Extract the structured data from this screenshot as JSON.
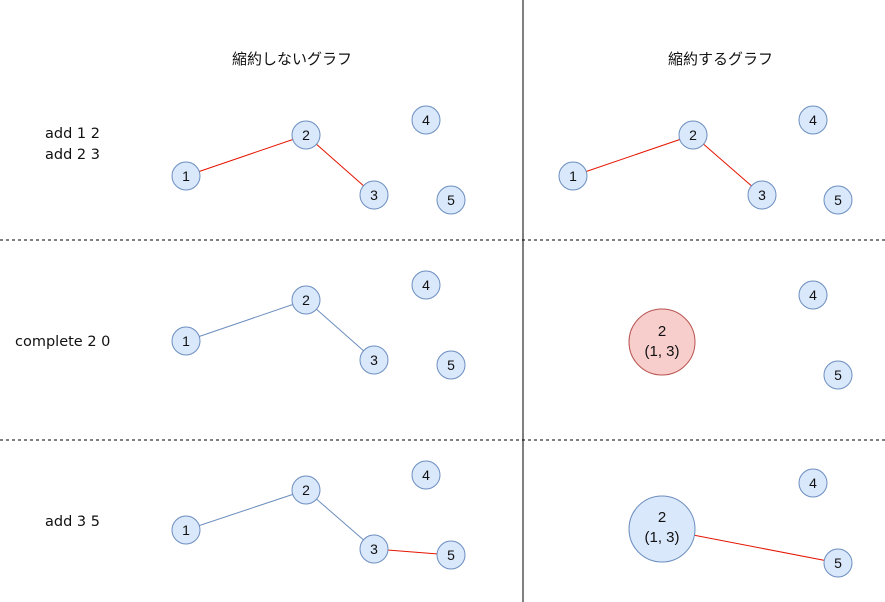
{
  "headers": {
    "left": "縮約しないグラフ",
    "right": "縮約するグラフ"
  },
  "operations": {
    "row1_line1": "add 1 2",
    "row1_line2": "add 2 3",
    "row2": "complete 2 0",
    "row3": "add 3 5"
  },
  "colors": {
    "node_fill": "#dae8fc",
    "node_stroke": "#6c8ebf",
    "contracted_fill": "#f8cecc",
    "contracted_stroke": "#b85450",
    "new_edge": "#e51400",
    "old_edge": "#6c8ebf",
    "divider": "#000000"
  },
  "diagram": {
    "nodes": {
      "n1": "1",
      "n2": "2",
      "n3": "3",
      "n4": "4",
      "n5": "5",
      "contracted_id": "2",
      "contracted_members": "(1, 3)"
    },
    "panels": [
      {
        "id": "row1-left",
        "edges": [
          [
            "1",
            "2",
            "new"
          ],
          [
            "2",
            "3",
            "new"
          ]
        ]
      },
      {
        "id": "row1-right",
        "edges": [
          [
            "1",
            "2",
            "new"
          ],
          [
            "2",
            "3",
            "new"
          ]
        ]
      },
      {
        "id": "row2-left",
        "edges": [
          [
            "1",
            "2",
            "old"
          ],
          [
            "2",
            "3",
            "old"
          ]
        ]
      },
      {
        "id": "row2-right",
        "edges": [],
        "contracted": "2 (1, 3)",
        "contracted_state": "highlighted"
      },
      {
        "id": "row3-left",
        "edges": [
          [
            "1",
            "2",
            "old"
          ],
          [
            "2",
            "3",
            "old"
          ],
          [
            "3",
            "5",
            "new"
          ]
        ]
      },
      {
        "id": "row3-right",
        "edges": [
          [
            "2 (1, 3)",
            "5",
            "new"
          ]
        ],
        "contracted": "2 (1, 3)",
        "contracted_state": "normal"
      }
    ]
  }
}
